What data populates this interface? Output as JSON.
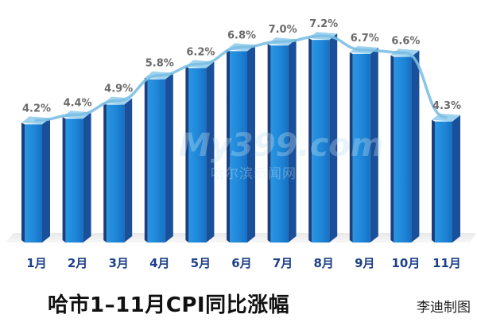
{
  "chart_data": {
    "type": "bar",
    "title": "哈市1–11月CPI同比涨幅",
    "credit": "李迪制图",
    "categories": [
      "1月",
      "2月",
      "3月",
      "4月",
      "5月",
      "6月",
      "7月",
      "8月",
      "9月",
      "10月",
      "11月"
    ],
    "values": [
      4.2,
      4.4,
      4.9,
      5.8,
      6.2,
      6.8,
      7.0,
      7.2,
      6.7,
      6.6,
      4.3
    ],
    "data_labels": [
      "4.2%",
      "4.4%",
      "4.9%",
      "5.8%",
      "6.2%",
      "6.8%",
      "7.0%",
      "7.2%",
      "6.7%",
      "6.6%",
      "4.3%"
    ],
    "trend_line": true,
    "ylim": [
      0,
      7.6
    ],
    "grid": false,
    "colors": {
      "bar_front": "#1f86d8",
      "bar_side": "#1a4f9a",
      "bar_top": "#9fd2ee",
      "line": "#7bbfe3",
      "label": "#6b6b6b",
      "axis_label": "#1d3f8a"
    }
  },
  "watermark": {
    "main": "My399.com",
    "sub": "哈尔滨新闻网"
  }
}
